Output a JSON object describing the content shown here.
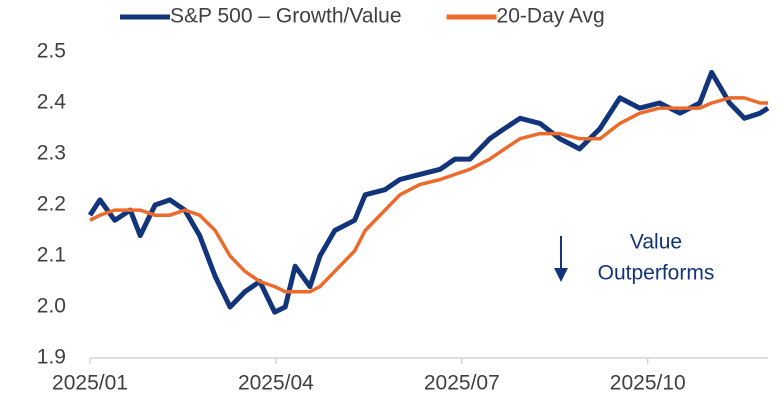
{
  "chart_data": {
    "type": "line",
    "x": [
      0,
      0.16,
      0.4,
      0.65,
      0.81,
      1.05,
      1.29,
      1.53,
      1.77,
      2.02,
      2.26,
      2.5,
      2.74,
      2.98,
      3.15,
      3.31,
      3.55,
      3.71,
      3.95,
      4.27,
      4.44,
      4.76,
      5.0,
      5.32,
      5.65,
      5.89,
      6.13,
      6.45,
      6.69,
      6.94,
      7.26,
      7.58,
      7.9,
      8.23,
      8.55,
      8.87,
      9.19,
      9.52,
      9.84,
      10.03,
      10.32,
      10.56,
      10.81,
      10.94
    ],
    "series": [
      {
        "name": "S&P 500 – Growth/Value",
        "color": "#12347a",
        "width": 5,
        "values": [
          2.18,
          2.21,
          2.17,
          2.19,
          2.14,
          2.2,
          2.21,
          2.19,
          2.14,
          2.06,
          2.0,
          2.03,
          2.05,
          1.99,
          2.0,
          2.08,
          2.04,
          2.1,
          2.15,
          2.17,
          2.22,
          2.23,
          2.25,
          2.26,
          2.27,
          2.29,
          2.29,
          2.33,
          2.35,
          2.37,
          2.36,
          2.33,
          2.31,
          2.35,
          2.41,
          2.39,
          2.4,
          2.38,
          2.4,
          2.46,
          2.4,
          2.37,
          2.38,
          2.39
        ]
      },
      {
        "name": "20-Day Avg",
        "color": "#ec6a2c",
        "width": 3.5,
        "values": [
          2.17,
          2.18,
          2.19,
          2.19,
          2.19,
          2.18,
          2.18,
          2.19,
          2.18,
          2.15,
          2.1,
          2.07,
          2.05,
          2.04,
          2.03,
          2.03,
          2.03,
          2.04,
          2.07,
          2.11,
          2.15,
          2.19,
          2.22,
          2.24,
          2.25,
          2.26,
          2.27,
          2.29,
          2.31,
          2.33,
          2.34,
          2.34,
          2.33,
          2.33,
          2.36,
          2.38,
          2.39,
          2.39,
          2.39,
          2.4,
          2.41,
          2.41,
          2.4,
          2.4
        ]
      }
    ],
    "xlim": [
      0,
      10.94
    ],
    "xticks": [
      {
        "value": 0,
        "label": "2025/01"
      },
      {
        "value": 3,
        "label": "2025/04"
      },
      {
        "value": 6,
        "label": "2025/07"
      },
      {
        "value": 9,
        "label": "2025/10"
      }
    ],
    "ylim": [
      1.9,
      2.5
    ],
    "yticks": [
      1.9,
      {
        "value": 2,
        "label": "2.0"
      },
      2.1,
      2.2,
      2.3,
      2.4,
      2.5
    ],
    "annotation": [
      "Value",
      "Outperforms"
    ],
    "legend": "top"
  }
}
